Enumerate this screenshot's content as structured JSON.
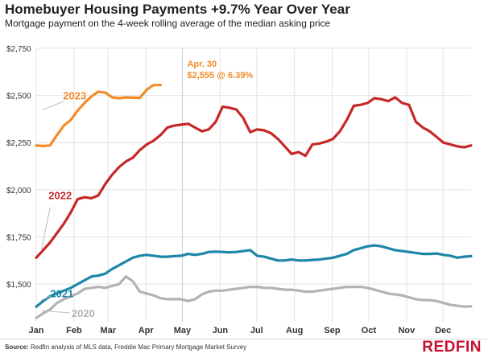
{
  "title": "Homebuyer Housing Payments +9.7% Year Over Year",
  "subtitle": "Mortgage payment on the 4-week rolling average of the median asking price",
  "source_label": "Source:",
  "source_text": "Redfin analysis of MLS data, Freddie Mac Primary Mortgage Market Survey",
  "logo_text": "REDFIN",
  "annotation": {
    "line1": "Apr. 30",
    "line2": "$2,555 @ 6.39%",
    "x": 17.14,
    "color": "#f28c28"
  },
  "chart_data": {
    "type": "line",
    "ylim": [
      1300,
      2750
    ],
    "xlim": [
      0,
      51
    ],
    "y_ticks": [
      {
        "value": 1500,
        "label": "$1,500"
      },
      {
        "value": 1750,
        "label": "$1,750"
      },
      {
        "value": 2000,
        "label": "$2,000"
      },
      {
        "value": 2250,
        "label": "$2,250"
      },
      {
        "value": 2500,
        "label": "$2,500"
      },
      {
        "value": 2750,
        "label": "$2,750"
      }
    ],
    "x_ticks": [
      {
        "value": 0,
        "label": "Jan"
      },
      {
        "value": 4.43,
        "label": "Feb"
      },
      {
        "value": 8.43,
        "label": "Mar"
      },
      {
        "value": 12.86,
        "label": "Apr"
      },
      {
        "value": 17.14,
        "label": "May"
      },
      {
        "value": 21.57,
        "label": "Jun"
      },
      {
        "value": 25.86,
        "label": "Jul"
      },
      {
        "value": 30.29,
        "label": "Aug"
      },
      {
        "value": 34.71,
        "label": "Sep"
      },
      {
        "value": 39.0,
        "label": "Oct"
      },
      {
        "value": 43.43,
        "label": "Nov"
      },
      {
        "value": 47.71,
        "label": "Dec"
      }
    ],
    "grid": true,
    "series": [
      {
        "name": "2020",
        "color": "#b3b3b3",
        "label_x": 3.2,
        "label_y": 1325,
        "leader": [
          [
            0.2,
            1325
          ],
          [
            2.8,
            1330
          ]
        ],
        "values": [
          1320,
          1345,
          1365,
          1400,
          1420,
          1435,
          1450,
          1475,
          1480,
          1485,
          1480,
          1490,
          1500,
          1540,
          1515,
          1460,
          1450,
          1440,
          1425,
          1420,
          1420,
          1420,
          1410,
          1420,
          1445,
          1460,
          1465,
          1465,
          1470,
          1475,
          1480,
          1485,
          1485,
          1480,
          1480,
          1475,
          1470,
          1470,
          1465,
          1460,
          1460,
          1465,
          1470,
          1475,
          1480,
          1485,
          1485,
          1485,
          1480,
          1470,
          1460,
          1450,
          1445,
          1440,
          1430,
          1420,
          1415,
          1415,
          1410,
          1400,
          1390,
          1385,
          1380,
          1382
        ]
      },
      {
        "name": "2021",
        "color": "#1d86a8",
        "label_x": 0.7,
        "label_y": 1430,
        "leader": [
          [
            0.1,
            1380
          ],
          [
            0.6,
            1420
          ]
        ],
        "values": [
          1380,
          1410,
          1435,
          1450,
          1465,
          1480,
          1500,
          1520,
          1540,
          1545,
          1555,
          1580,
          1600,
          1620,
          1640,
          1650,
          1655,
          1650,
          1645,
          1645,
          1648,
          1650,
          1660,
          1655,
          1660,
          1670,
          1672,
          1670,
          1668,
          1670,
          1675,
          1680,
          1650,
          1645,
          1635,
          1625,
          1625,
          1630,
          1625,
          1625,
          1628,
          1630,
          1635,
          1640,
          1650,
          1660,
          1680,
          1690,
          1700,
          1705,
          1700,
          1690,
          1680,
          1675,
          1670,
          1665,
          1660,
          1660,
          1662,
          1655,
          1650,
          1640,
          1645,
          1648
        ]
      },
      {
        "name": "2022",
        "color": "#c62828",
        "label_x": 0.5,
        "label_y": 1950,
        "leader": [
          [
            0.1,
            1640
          ],
          [
            0.5,
            1890
          ]
        ],
        "values": [
          1640,
          1680,
          1720,
          1770,
          1820,
          1880,
          1950,
          1960,
          1955,
          1970,
          2030,
          2080,
          2120,
          2150,
          2170,
          2210,
          2240,
          2260,
          2290,
          2330,
          2340,
          2345,
          2350,
          2330,
          2310,
          2320,
          2360,
          2440,
          2435,
          2425,
          2380,
          2305,
          2320,
          2315,
          2300,
          2270,
          2230,
          2190,
          2200,
          2180,
          2240,
          2245,
          2255,
          2270,
          2310,
          2370,
          2445,
          2450,
          2460,
          2485,
          2480,
          2470,
          2490,
          2460,
          2450,
          2360,
          2330,
          2310,
          2280,
          2250,
          2240,
          2230,
          2225,
          2235
        ]
      },
      {
        "name": "2023",
        "color": "#f28c28",
        "label_x": 2.2,
        "label_y": 2480,
        "leader": [
          [
            0.3,
            2390
          ],
          [
            2.0,
            2450
          ]
        ],
        "values": [
          2235,
          2232,
          2235,
          2290,
          2340,
          2370,
          2420,
          2460,
          2495,
          2520,
          2515,
          2490,
          2485,
          2490,
          2488,
          2487,
          2530,
          2555,
          2555
        ]
      }
    ]
  }
}
